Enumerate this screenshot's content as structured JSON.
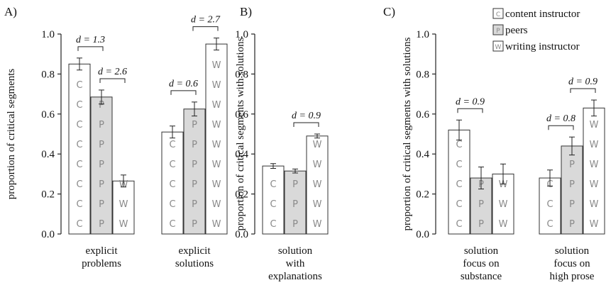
{
  "legend": {
    "items": [
      {
        "letter": "C",
        "label": "content instructor",
        "fill": "#ffffff"
      },
      {
        "letter": "P",
        "label": "peers",
        "fill": "#d9d9d9"
      },
      {
        "letter": "W",
        "label": "writing instructor",
        "fill": "#ffffff"
      }
    ]
  },
  "chart_data": [
    {
      "type": "bar",
      "panel_label": "A)",
      "ylabel": "proportion of critical segments",
      "ylim": [
        0,
        1.0
      ],
      "yticks": [
        "0.0",
        "0.2",
        "0.4",
        "0.6",
        "0.8",
        "1.0"
      ],
      "groups": [
        {
          "label_lines": [
            "explicit",
            "problems"
          ],
          "values": [
            0.85,
            0.685,
            0.265
          ],
          "errors": [
            0.03,
            0.035,
            0.03
          ],
          "annotations": [
            {
              "text": "d = 1.3",
              "from": 0,
              "to": 1
            },
            {
              "text": "d = 2.6",
              "from": 1,
              "to": 2
            }
          ]
        },
        {
          "label_lines": [
            "explicit",
            "solutions"
          ],
          "values": [
            0.51,
            0.625,
            0.95
          ],
          "errors": [
            0.03,
            0.035,
            0.03
          ],
          "annotations": [
            {
              "text": "d = 0.6",
              "from": 0,
              "to": 1
            },
            {
              "text": "d = 2.7",
              "from": 1,
              "to": 2
            }
          ]
        }
      ]
    },
    {
      "type": "bar",
      "panel_label": "B)",
      "ylabel": "proportion of critical segments with solutions",
      "ylim": [
        0,
        1.0
      ],
      "yticks": [
        "0.0",
        "0.2",
        "0.4",
        "0.6",
        "0.8",
        "1.0"
      ],
      "groups": [
        {
          "label_lines": [
            "solution",
            "with",
            "explanations"
          ],
          "values": [
            0.34,
            0.315,
            0.49
          ],
          "errors": [
            0.012,
            0.01,
            0.01
          ],
          "annotations": [
            {
              "text": "d = 0.9",
              "from": 1,
              "to": 2
            }
          ]
        }
      ]
    },
    {
      "type": "bar",
      "panel_label": "C)",
      "ylabel": "proportion of critical segments with solutions",
      "ylim": [
        0,
        1.0
      ],
      "yticks": [
        "0.0",
        "0.2",
        "0.4",
        "0.6",
        "0.8",
        "1.0"
      ],
      "groups": [
        {
          "label_lines": [
            "solution",
            "focus on",
            "substance"
          ],
          "values": [
            0.52,
            0.28,
            0.3
          ],
          "errors": [
            0.05,
            0.055,
            0.05
          ],
          "annotations": [
            {
              "text": "d = 0.9",
              "from": 0,
              "to": 1
            }
          ]
        },
        {
          "label_lines": [
            "solution",
            "focus on",
            "high prose"
          ],
          "values": [
            0.28,
            0.44,
            0.63
          ],
          "errors": [
            0.04,
            0.045,
            0.04
          ],
          "annotations": [
            {
              "text": "d = 0.8",
              "from": 0,
              "to": 1
            },
            {
              "text": "d = 0.9",
              "from": 1,
              "to": 2
            }
          ]
        }
      ]
    }
  ]
}
